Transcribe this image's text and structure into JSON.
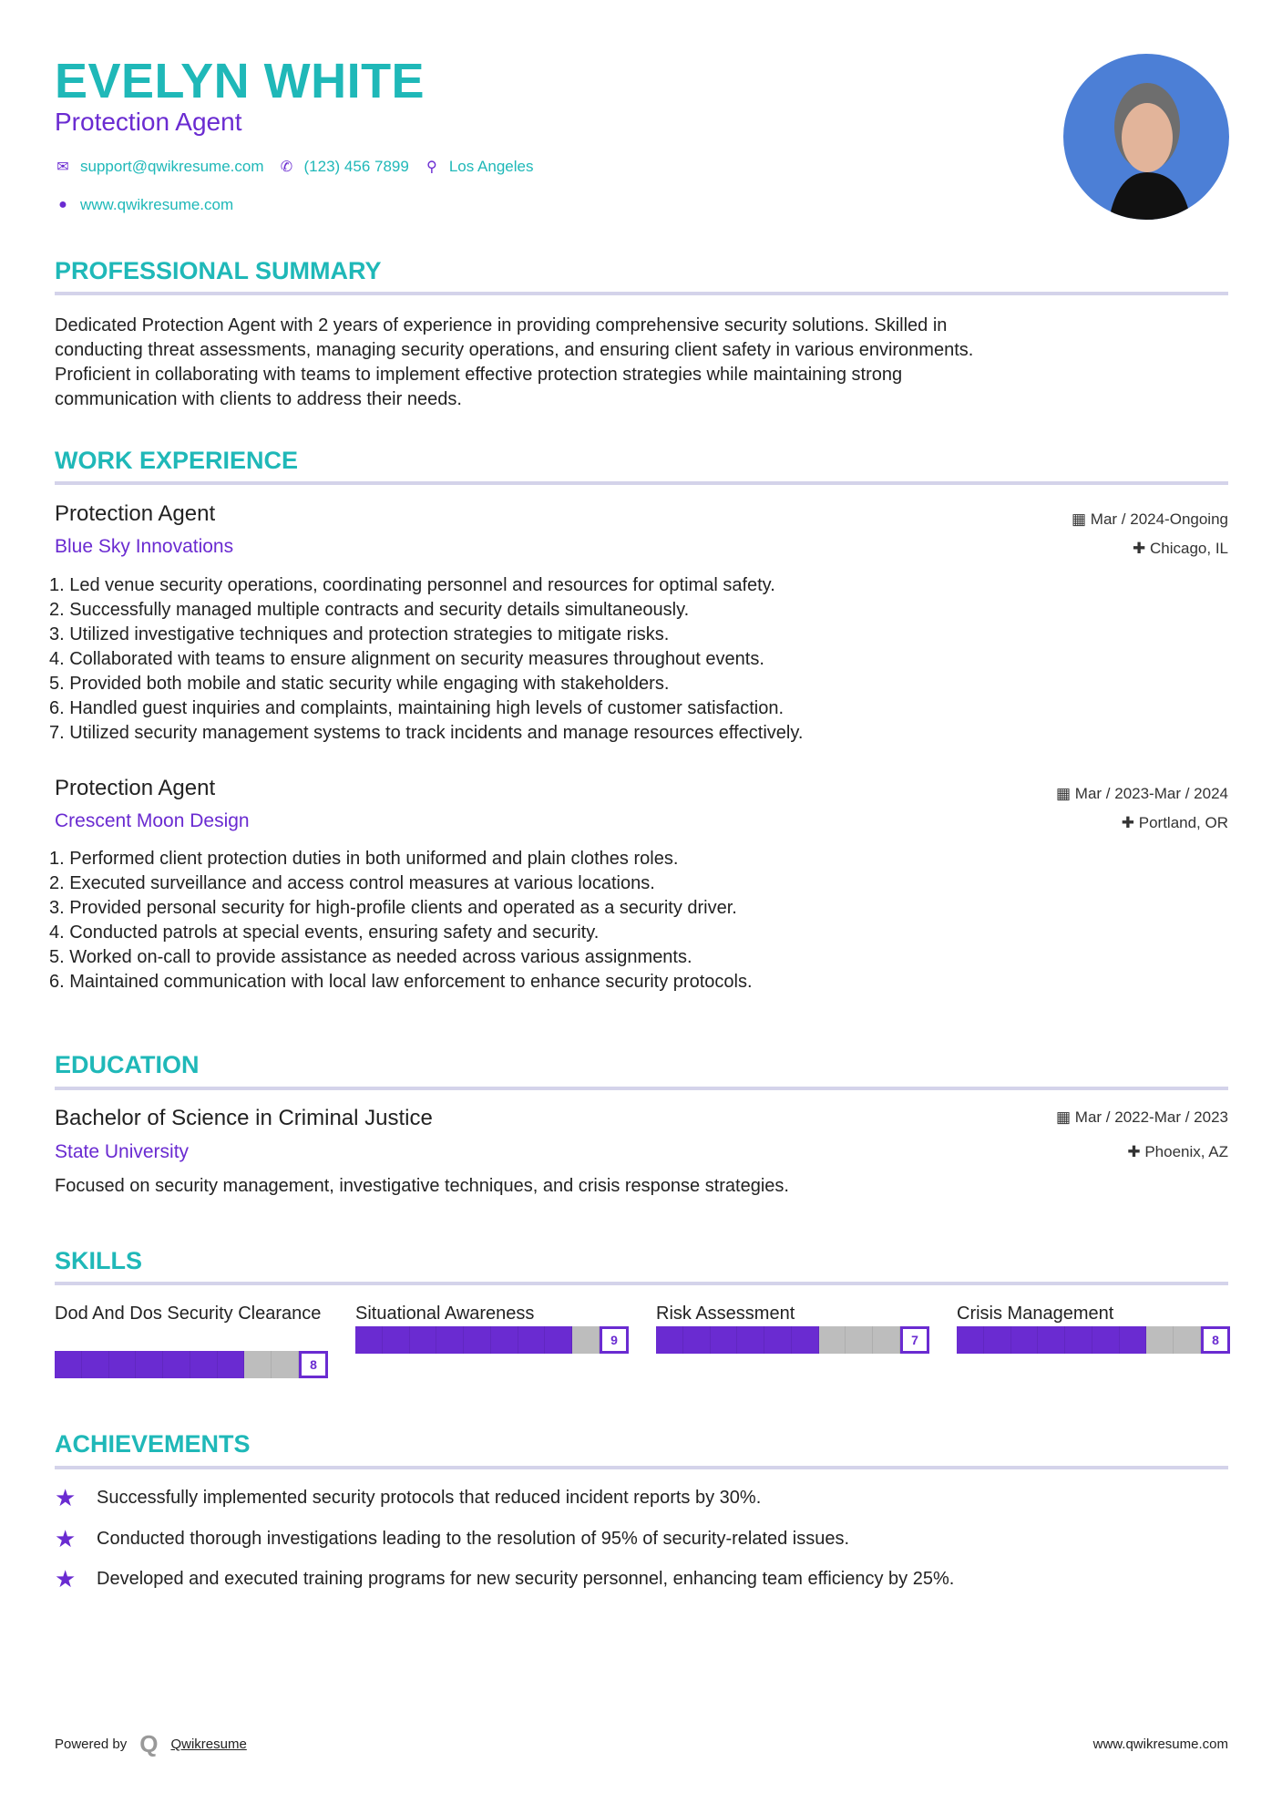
{
  "header": {
    "name": "EVELYN WHITE",
    "title": "Protection Agent",
    "email": "support@qwikresume.com",
    "phone": "(123) 456 7899",
    "location": "Los Angeles",
    "website": "www.qwikresume.com"
  },
  "summary": {
    "heading": "PROFESSIONAL SUMMARY",
    "lines": [
      "Dedicated Protection Agent with 2 years of experience in providing comprehensive security solutions. Skilled in",
      "conducting threat assessments, managing security operations, and ensuring client safety in various environments.",
      "Proficient in collaborating with teams to implement effective protection strategies while maintaining strong",
      "communication with clients to address their needs."
    ]
  },
  "work": {
    "heading": "WORK EXPERIENCE",
    "jobs": [
      {
        "title": "Protection Agent",
        "company": "Blue Sky Innovations",
        "date": "Mar / 2024-Ongoing",
        "location": "Chicago, IL",
        "bullets": [
          "1. Led venue security operations, coordinating personnel and resources for optimal safety.",
          "2. Successfully managed multiple contracts and security details simultaneously.",
          "3. Utilized investigative techniques and protection strategies to mitigate risks.",
          "4. Collaborated with teams to ensure alignment on security measures throughout events.",
          "5. Provided both mobile and static security while engaging with stakeholders.",
          "6. Handled guest inquiries and complaints, maintaining high levels of customer satisfaction.",
          "7. Utilized security management systems to track incidents and manage resources effectively."
        ]
      },
      {
        "title": "Protection Agent",
        "company": "Crescent Moon Design",
        "date": "Mar / 2023-Mar / 2024",
        "location": "Portland, OR",
        "bullets": [
          "1. Performed client protection duties in both uniformed and plain clothes roles.",
          "2. Executed surveillance and access control measures at various locations.",
          "3. Provided personal security for high-profile clients and operated as a security driver.",
          "4. Conducted patrols at special events, ensuring safety and security.",
          "5. Worked on-call to provide assistance as needed across various assignments.",
          "6. Maintained communication with local law enforcement to enhance security protocols."
        ]
      }
    ]
  },
  "education": {
    "heading": "EDUCATION",
    "degree": "Bachelor of Science in Criminal Justice",
    "school": "State University",
    "date": "Mar / 2022-Mar / 2023",
    "location": "Phoenix, AZ",
    "description": "Focused on security management, investigative techniques, and crisis response strategies."
  },
  "skills": {
    "heading": "SKILLS",
    "items": [
      {
        "name": "Dod And Dos Security Clearance",
        "level": 8
      },
      {
        "name": "Situational Awareness",
        "level": 9
      },
      {
        "name": "Risk Assessment",
        "level": 7
      },
      {
        "name": "Crisis Management",
        "level": 8
      }
    ],
    "max": 10
  },
  "achievements": {
    "heading": "ACHIEVEMENTS",
    "items": [
      "Successfully implemented security protocols that reduced incident reports by 30%.",
      "Conducted thorough investigations leading to the resolution of 95% of security-related issues.",
      "Developed and executed training programs for new security personnel, enhancing team efficiency by 25%."
    ]
  },
  "footer": {
    "powered": "Powered by",
    "brand": "Qwikresume",
    "url": "www.qwikresume.com"
  },
  "colors": {
    "accent": "#1fb8b8",
    "secondary": "#6a2bd1",
    "rule": "#d4d3ea",
    "bar_empty": "#bdbdbd"
  }
}
